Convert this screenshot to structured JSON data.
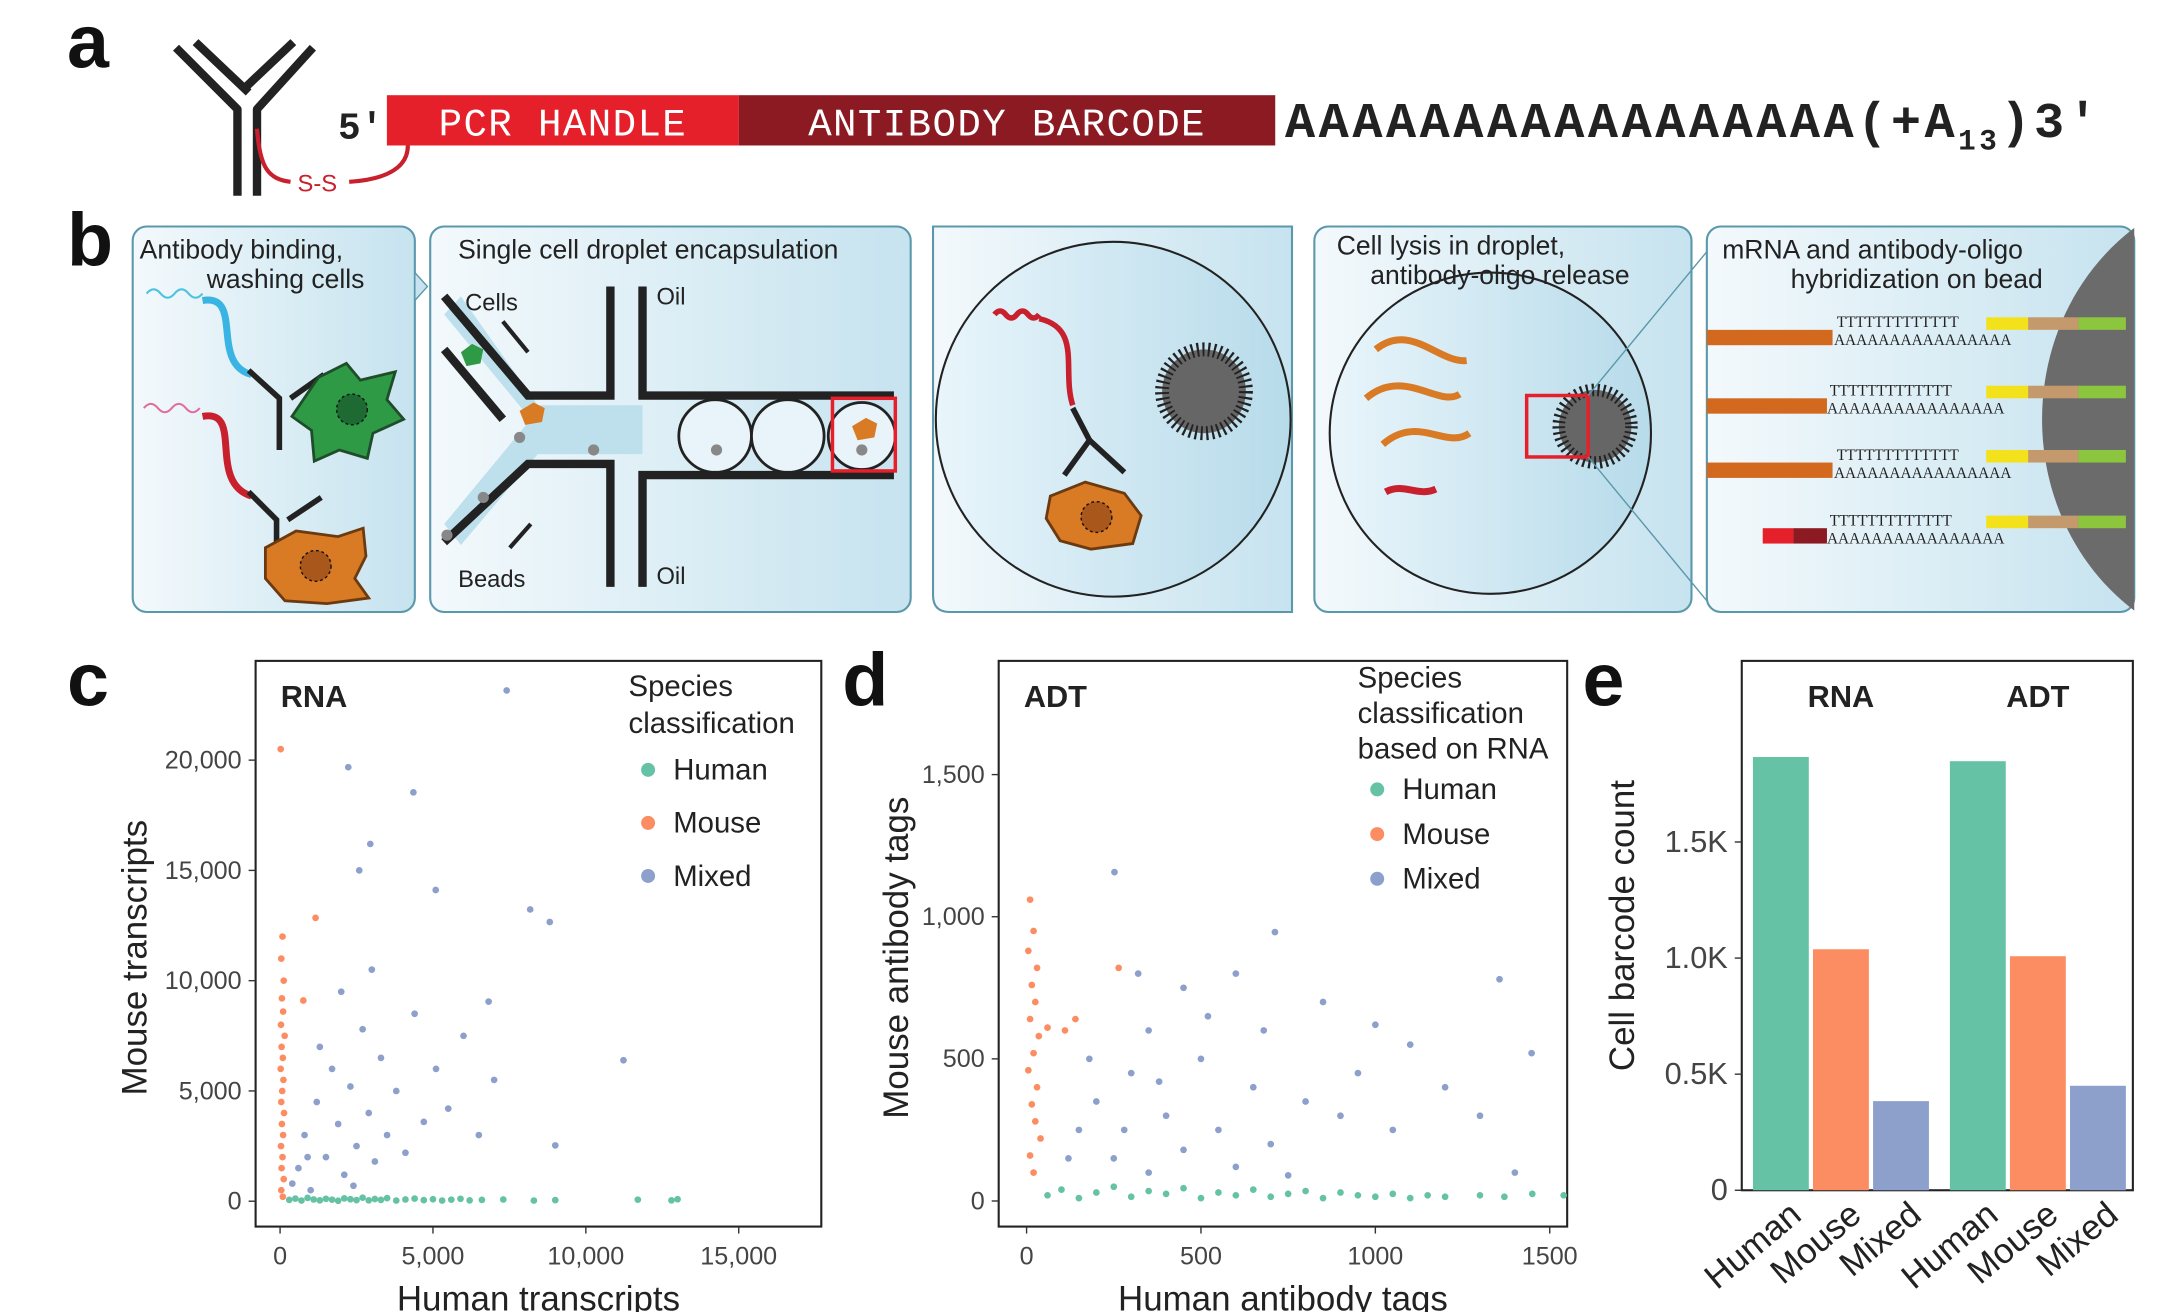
{
  "panel_labels": [
    "a",
    "b",
    "c",
    "d",
    "e"
  ],
  "panel_a": {
    "five_prime": "5′",
    "pcr_handle": "PCR HANDLE",
    "antibody_barcode": "ANTIBODY BARCODE",
    "poly_a": "AAAAAAAAAAAAAAAAA(+A",
    "subscript": "13",
    "three_prime": ")3′",
    "disulfide": "S-S"
  },
  "panel_b": {
    "step1": [
      "Antibody binding,",
      "washing cells"
    ],
    "step2": "Single cell droplet encapsulation",
    "cells": "Cells",
    "oil": "Oil",
    "beads": "Beads",
    "step4": [
      "Cell lysis in droplet,",
      "antibody-oligo release"
    ],
    "step5": [
      "mRNA and antibody-oligo",
      "hybridization on bead"
    ],
    "poly_t": "TTTTTTTTTTTTT",
    "poly_a": "AAAAAAAAAAAAAAAA"
  },
  "chart_data": [
    {
      "type": "scatter",
      "label": "RNA",
      "x_label": "Human transcripts",
      "y_label": "Mouse transcripts",
      "legend_title": [
        "Species",
        "classification"
      ],
      "xlim": [
        -800,
        17700
      ],
      "ylim": [
        -1150,
        24500
      ],
      "xticks": [
        0,
        {
          "value": 5000,
          "label": "5,000"
        },
        {
          "value": 10000,
          "label": "10,000"
        },
        {
          "value": 15000,
          "label": "15,000"
        }
      ],
      "yticks": [
        0,
        {
          "value": 5000,
          "label": "5,000"
        },
        {
          "value": 10000,
          "label": "10,000"
        },
        {
          "value": 15000,
          "label": "15,000"
        },
        {
          "value": 20000,
          "label": "20,000"
        }
      ],
      "series": [
        {
          "name": "Human",
          "color": "#66c2a5",
          "x": [
            300,
            500,
            700,
            900,
            1100,
            1300,
            1500,
            1700,
            1900,
            2100,
            2300,
            2500,
            2700,
            2900,
            3100,
            3300,
            3500,
            3800,
            4100,
            4400,
            4700,
            5000,
            5300,
            5600,
            5900,
            6200,
            6600,
            7300,
            8300,
            9000,
            11700,
            12800,
            13000
          ],
          "y": [
            60,
            120,
            30,
            150,
            80,
            40,
            110,
            70,
            20,
            130,
            90,
            50,
            160,
            40,
            100,
            60,
            140,
            30,
            80,
            120,
            50,
            90,
            30,
            70,
            110,
            40,
            60,
            80,
            30,
            50,
            70,
            40,
            90
          ]
        },
        {
          "name": "Mouse",
          "color": "#fc8d62",
          "x": [
            20,
            80,
            40,
            120,
            60,
            100,
            30,
            150,
            50,
            90,
            20,
            110,
            70,
            40,
            130,
            60,
            100,
            30,
            80,
            50,
            120,
            40,
            90,
            1160,
            760
          ],
          "y": [
            20500,
            12000,
            11000,
            10000,
            9200,
            8600,
            8000,
            7500,
            7000,
            6500,
            6000,
            5500,
            5000,
            4500,
            4000,
            3500,
            3000,
            2500,
            2000,
            1500,
            1000,
            500,
            200,
            12850,
            9100
          ]
        },
        {
          "name": "Mixed",
          "color": "#8da0cb",
          "x": [
            7410,
            2230,
            4360,
            2950,
            2590,
            5090,
            8180,
            8820,
            11230,
            6820,
            9000,
            600,
            800,
            1000,
            1200,
            1500,
            1700,
            1900,
            2100,
            2300,
            2500,
            2700,
            2900,
            3100,
            3300,
            3500,
            3800,
            4100,
            4400,
            4700,
            5100,
            5500,
            6000,
            6500,
            7000,
            400,
            1300,
            2000,
            3000,
            2400,
            900
          ],
          "y": [
            23160,
            19680,
            18540,
            16200,
            15000,
            14110,
            13230,
            12660,
            6390,
            9050,
            2530,
            1500,
            3000,
            500,
            4500,
            2000,
            6000,
            3500,
            1200,
            5200,
            2500,
            7800,
            4000,
            1800,
            6500,
            3000,
            5000,
            2200,
            8500,
            3600,
            6000,
            4200,
            7500,
            3000,
            5500,
            800,
            7000,
            9500,
            10500,
            700,
            2000
          ]
        }
      ]
    },
    {
      "type": "scatter",
      "label": "ADT",
      "x_label": "Human antibody tags",
      "y_label": "Mouse antibody tags",
      "legend_title": [
        "Species",
        "classification",
        "based on RNA"
      ],
      "xlim": [
        -80,
        1550
      ],
      "ylim": [
        -90,
        1900
      ],
      "xticks": [
        0,
        500,
        1000,
        1500
      ],
      "yticks": [
        0,
        500,
        {
          "value": 1000,
          "label": "1,000"
        },
        {
          "value": 1500,
          "label": "1,500"
        }
      ],
      "series": [
        {
          "name": "Human",
          "color": "#66c2a5",
          "x": [
            60,
            100,
            150,
            200,
            250,
            300,
            350,
            400,
            450,
            500,
            550,
            600,
            650,
            700,
            750,
            800,
            850,
            900,
            950,
            1000,
            1050,
            1100,
            1150,
            1200,
            1300,
            1370,
            1450,
            1540
          ],
          "y": [
            20,
            40,
            10,
            30,
            50,
            15,
            35,
            25,
            45,
            10,
            30,
            20,
            40,
            15,
            25,
            35,
            10,
            30,
            20,
            15,
            25,
            10,
            20,
            15,
            20,
            15,
            25,
            20
          ]
        },
        {
          "name": "Mouse",
          "color": "#fc8d62",
          "x": [
            10,
            20,
            5,
            30,
            15,
            25,
            10,
            35,
            20,
            5,
            30,
            15,
            25,
            40,
            10,
            20,
            60,
            110,
            140,
            264
          ],
          "y": [
            1060,
            950,
            880,
            820,
            760,
            700,
            640,
            580,
            520,
            460,
            400,
            340,
            280,
            220,
            160,
            100,
            610,
            600,
            640,
            820
          ]
        },
        {
          "name": "Mixed",
          "color": "#8da0cb",
          "x": [
            252,
            712,
            1356,
            1448,
            1000,
            850,
            600,
            450,
            350,
            300,
            200,
            150,
            400,
            500,
            550,
            650,
            700,
            800,
            900,
            1050,
            1200,
            1300,
            1400,
            250,
            350,
            450,
            600,
            750,
            1100,
            950,
            320,
            180,
            120,
            280,
            380,
            520,
            680
          ],
          "y": [
            1157,
            946,
            780,
            520,
            620,
            700,
            800,
            750,
            600,
            450,
            350,
            250,
            300,
            500,
            250,
            400,
            200,
            350,
            300,
            250,
            400,
            300,
            100,
            150,
            100,
            180,
            120,
            90,
            550,
            450,
            800,
            500,
            150,
            250,
            420,
            650,
            600
          ]
        }
      ]
    },
    {
      "type": "bar",
      "y_label": "Cell barcode count",
      "group_labels": [
        "RNA",
        "ADT"
      ],
      "categories": [
        "Human",
        "Mouse",
        "Mixed",
        "Human",
        "Mouse",
        "Mixed"
      ],
      "values": [
        1866,
        1038,
        384,
        1848,
        1008,
        450
      ],
      "colors": [
        "#66c2a5",
        "#fc8d62",
        "#8da0cb",
        "#66c2a5",
        "#fc8d62",
        "#8da0cb"
      ],
      "ylim": [
        0,
        2280
      ],
      "yticks": [
        0,
        {
          "value": 500,
          "label": "0.5K"
        },
        {
          "value": 1000,
          "label": "1.0K"
        },
        {
          "value": 1500,
          "label": "1.5K"
        }
      ]
    }
  ]
}
